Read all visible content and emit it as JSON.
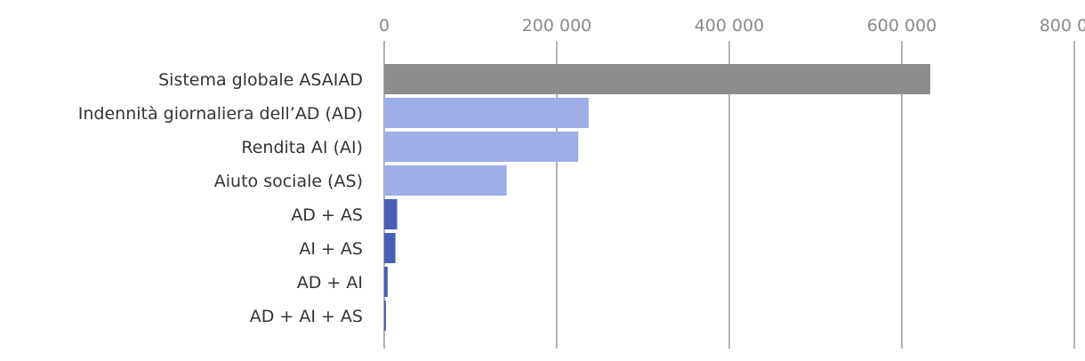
{
  "chart_data": {
    "type": "bar",
    "orientation": "horizontal",
    "title": "",
    "xlabel": "",
    "ylabel": "",
    "xlim": [
      0,
      800000
    ],
    "x_ticks": [
      0,
      200000,
      400000,
      600000,
      800000
    ],
    "x_tick_labels": [
      "0",
      "200 000",
      "400 000",
      "600 000",
      "800 000"
    ],
    "axis_position": "top",
    "grid": true,
    "legend": "none",
    "categories": [
      "Sistema globale ASAIAD",
      "Indennità giornaliera dell’AD (AD)",
      "Rendita AI (AI)",
      "Aiuto sociale (AS)",
      "AD + AS",
      "AI + AS",
      "AD + AI",
      "AD + AI + AS"
    ],
    "values": [
      633000,
      237000,
      225000,
      142000,
      15000,
      13000,
      4000,
      2000
    ],
    "colors": [
      "#8c8c8c",
      "#9eaee6",
      "#9eaee6",
      "#9eaee6",
      "#4a5fb3",
      "#4a5fb3",
      "#4a5fb3",
      "#4a5fb3"
    ]
  }
}
